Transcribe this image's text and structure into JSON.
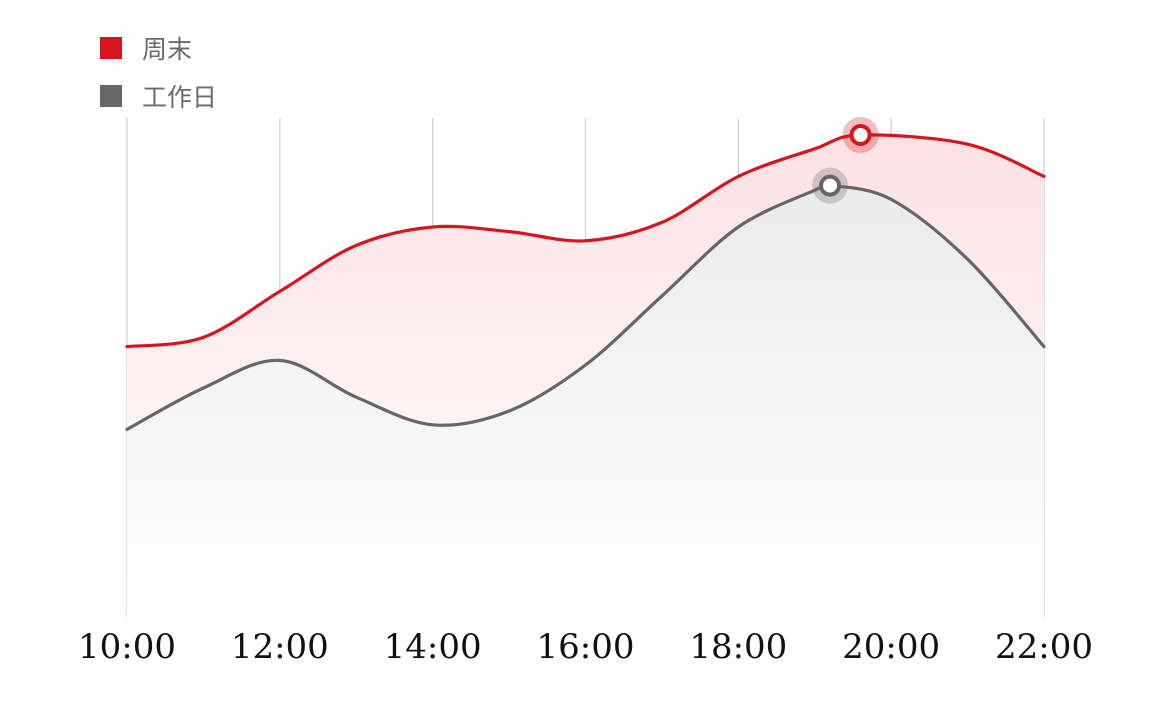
{
  "chart_data": {
    "type": "area",
    "x": [
      "10:00",
      "12:00",
      "14:00",
      "16:00",
      "18:00",
      "20:00",
      "22:00"
    ],
    "xlabel": "",
    "ylabel": "",
    "grid": "vertical",
    "legend_position": "top-left",
    "series": [
      {
        "name": "周末",
        "color": "#d7151d",
        "points": [
          [
            10,
            59
          ],
          [
            11,
            61
          ],
          [
            12,
            71
          ],
          [
            13,
            81
          ],
          [
            14,
            85
          ],
          [
            15,
            84
          ],
          [
            16,
            82
          ],
          [
            17,
            86
          ],
          [
            18,
            96
          ],
          [
            19,
            102
          ],
          [
            19.6,
            105
          ],
          [
            21,
            103
          ],
          [
            22,
            96
          ]
        ],
        "peak": [
          19.6,
          105
        ]
      },
      {
        "name": "工作日",
        "color": "#666666",
        "points": [
          [
            10,
            41
          ],
          [
            11,
            50
          ],
          [
            12,
            56
          ],
          [
            13,
            48
          ],
          [
            14,
            42
          ],
          [
            15,
            45
          ],
          [
            16,
            55
          ],
          [
            17,
            70
          ],
          [
            18,
            85
          ],
          [
            19,
            93
          ],
          [
            19.2,
            94
          ],
          [
            20,
            91
          ],
          [
            21,
            78
          ],
          [
            22,
            59
          ]
        ],
        "peak": [
          19.2,
          94
        ]
      }
    ],
    "ylim": [
      0,
      110
    ]
  }
}
